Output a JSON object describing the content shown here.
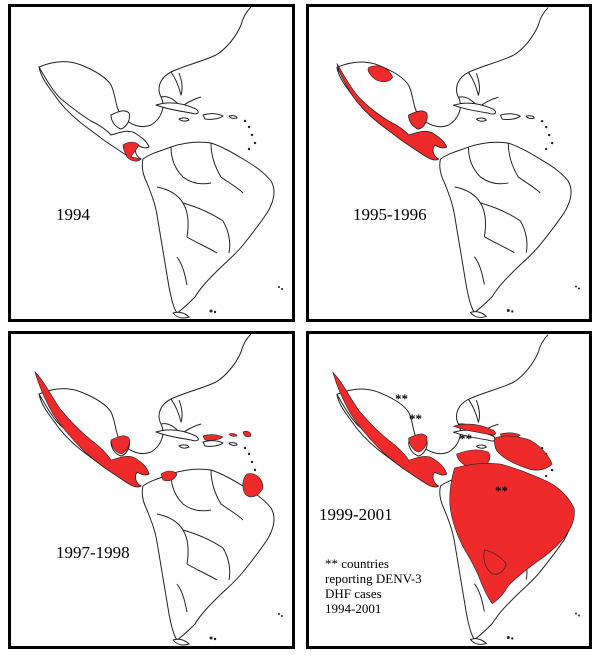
{
  "panels": [
    {
      "id": "p1",
      "label": "1994"
    },
    {
      "id": "p2",
      "label": "1995-1996"
    },
    {
      "id": "p3",
      "label": "1997-1998"
    },
    {
      "id": "p4",
      "label": "1999-2001"
    }
  ],
  "markers": {
    "symbol": "**"
  },
  "legend": {
    "lines": [
      "** countries",
      "reporting DENV-3",
      "DHF cases",
      "1994-2001"
    ]
  },
  "colors": {
    "affected": "#ee2a2a",
    "outline": "#222222"
  }
}
